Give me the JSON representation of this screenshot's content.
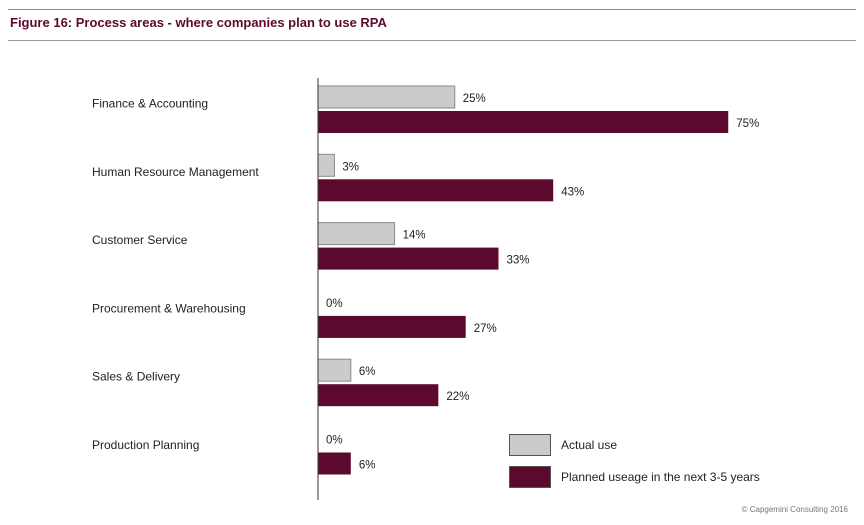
{
  "figure": {
    "title": "Figure 16: Process areas - where companies plan to use RPA",
    "title_color": "#5b0a2e"
  },
  "legend": [
    {
      "label": "Actual use",
      "color": "#cbcbcb"
    },
    {
      "label": "Planned useage in the next 3-5 years",
      "color": "#5b0a2e"
    }
  ],
  "copyright": "© Capgemini Consulting 2016",
  "chart_data": {
    "type": "bar",
    "orientation": "horizontal",
    "categories": [
      "Finance & Accounting",
      "Human Resource Management",
      "Customer Service",
      "Procurement & Warehousing",
      "Sales & Delivery",
      "Production Planning"
    ],
    "series": [
      {
        "name": "Actual use",
        "values": [
          25,
          3,
          14,
          0,
          6,
          0
        ],
        "labels": [
          "25%",
          "3%",
          "14%",
          "0%",
          "6%",
          "0%"
        ],
        "color": "#cbcbcb"
      },
      {
        "name": "Planned useage in the next 3-5 years",
        "values": [
          75,
          43,
          33,
          27,
          22,
          6
        ],
        "labels": [
          "75%",
          "43%",
          "33%",
          "27%",
          "22%",
          "6%"
        ],
        "color": "#5b0a2e"
      }
    ],
    "xlim": [
      0,
      100
    ],
    "grid": false,
    "legend_position": "bottom-right"
  }
}
